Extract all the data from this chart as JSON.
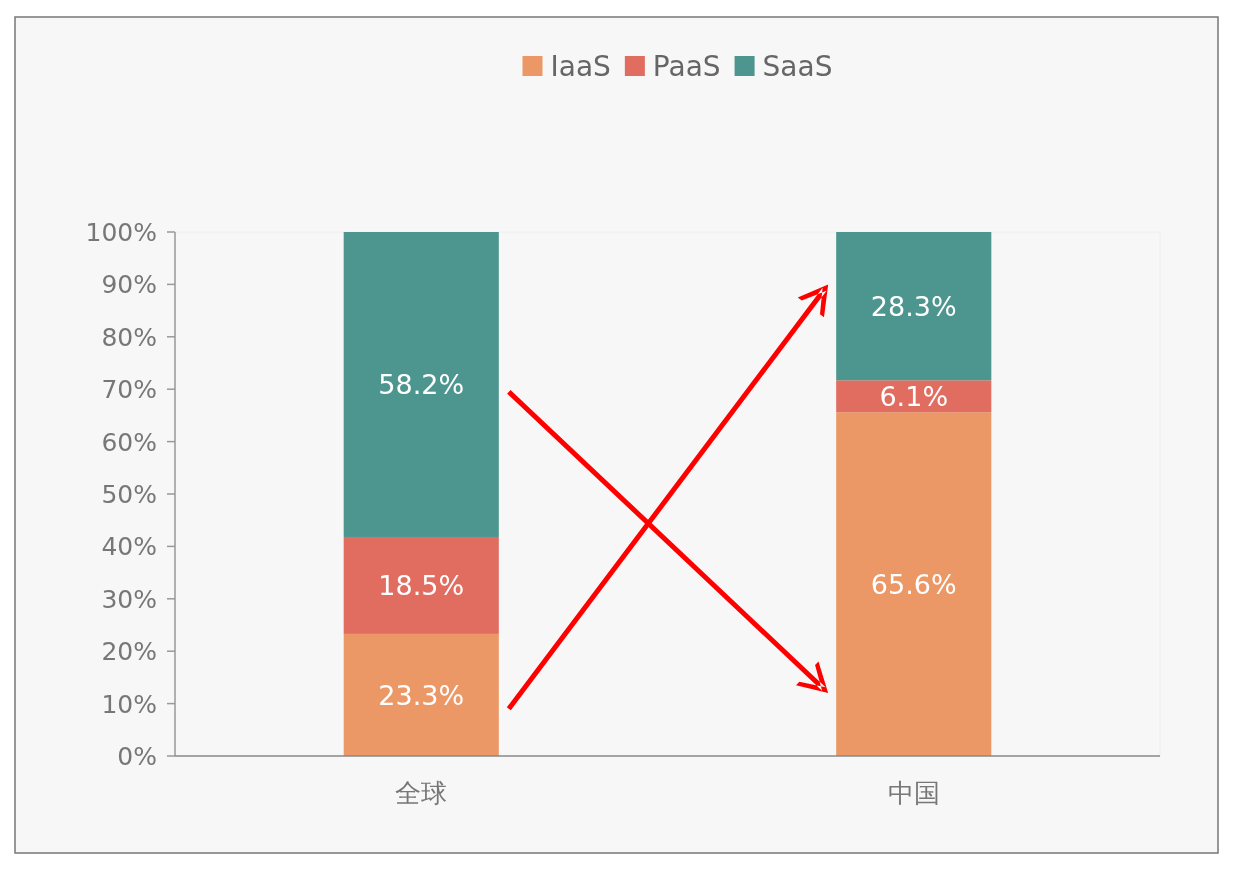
{
  "chart_data": {
    "type": "bar",
    "stacked": true,
    "categories": [
      "全球",
      "中国"
    ],
    "series": [
      {
        "name": "IaaS",
        "color": "#eb9866",
        "values": [
          23.3,
          65.6
        ],
        "value_labels": [
          "23.3%",
          "65.6%"
        ]
      },
      {
        "name": "PaaS",
        "color": "#e06d60",
        "values": [
          18.5,
          6.1
        ],
        "value_labels": [
          "18.5%",
          "6.1%"
        ]
      },
      {
        "name": "SaaS",
        "color": "#4d958f",
        "values": [
          58.2,
          28.3
        ],
        "value_labels": [
          "58.2%",
          "28.3%"
        ]
      }
    ],
    "ylim": [
      0,
      100
    ],
    "yticks": [
      {
        "value": 0,
        "label": "0%"
      },
      {
        "value": 10,
        "label": "10%"
      },
      {
        "value": 20,
        "label": "20%"
      },
      {
        "value": 30,
        "label": "30%"
      },
      {
        "value": 40,
        "label": "40%"
      },
      {
        "value": 50,
        "label": "50%"
      },
      {
        "value": 60,
        "label": "60%"
      },
      {
        "value": 70,
        "label": "70%"
      },
      {
        "value": 80,
        "label": "80%"
      },
      {
        "value": 90,
        "label": "90%"
      },
      {
        "value": 100,
        "label": "100%"
      }
    ],
    "grid": false,
    "legend": "top"
  }
}
